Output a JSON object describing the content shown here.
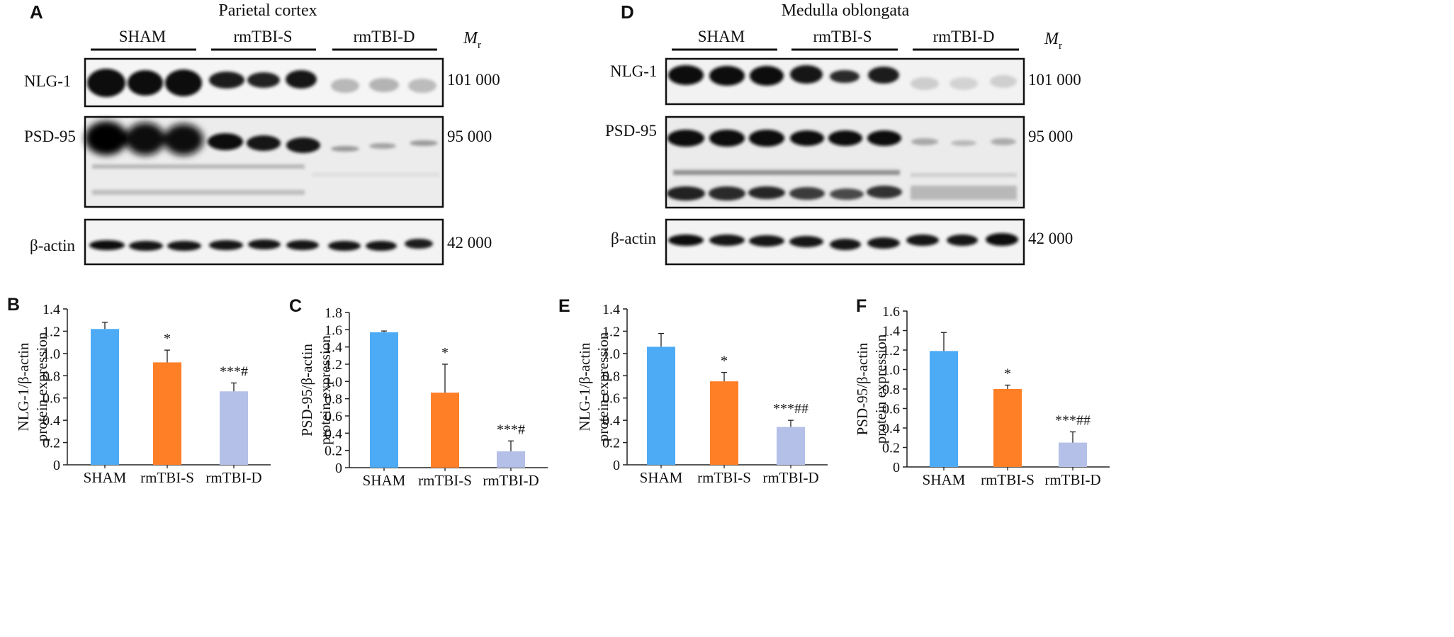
{
  "colors": {
    "sham": "#4dabf5",
    "rmtbi_s": "#ff7f27",
    "rmtbi_d": "#b4c0e8",
    "axis": "#222222",
    "error_bar": "#222222"
  },
  "blots": [
    {
      "panel": "A",
      "title": "Parietal cortex",
      "groups": [
        "SHAM",
        "rmTBI-S",
        "rmTBI-D"
      ],
      "mr_label_main": "M",
      "mr_label_sub": "r",
      "rows": [
        {
          "label": "NLG-1",
          "mw": "101 000"
        },
        {
          "label": "PSD-95",
          "mw": "95 000"
        },
        {
          "label": "β-actin",
          "mw": "42 000"
        }
      ]
    },
    {
      "panel": "D",
      "title": "Medulla oblongata",
      "groups": [
        "SHAM",
        "rmTBI-S",
        "rmTBI-D"
      ],
      "mr_label_main": "M",
      "mr_label_sub": "r",
      "rows": [
        {
          "label": "NLG-1",
          "mw": "101 000"
        },
        {
          "label": "PSD-95",
          "mw": "95 000"
        },
        {
          "label": "β-actin",
          "mw": "42 000"
        }
      ]
    }
  ],
  "chart_data": [
    {
      "panel": "B",
      "type": "bar",
      "categories": [
        "SHAM",
        "rmTBI-S",
        "rmTBI-D"
      ],
      "values": [
        1.22,
        0.92,
        0.66
      ],
      "errors": [
        0.06,
        0.11,
        0.075
      ],
      "annotations": [
        "",
        "*",
        "***#"
      ],
      "ylabel_line1": "NLG-1/β-actin",
      "ylabel_line2": "protein expression",
      "ylim": [
        0,
        1.4
      ],
      "yticks": [
        "0",
        "0.2",
        "0.4",
        "0.6",
        "0.8",
        "1.0",
        "1.2",
        "1.4"
      ]
    },
    {
      "panel": "C",
      "type": "bar",
      "categories": [
        "SHAM",
        "rmTBI-S",
        "rmTBI-D"
      ],
      "values": [
        1.57,
        0.87,
        0.19
      ],
      "errors": [
        0.015,
        0.33,
        0.12
      ],
      "annotations": [
        "",
        "*",
        "***#"
      ],
      "ylabel_line1": "PSD-95/β-actin",
      "ylabel_line2": "protein expression",
      "ylim": [
        0,
        1.8
      ],
      "yticks": [
        "0",
        "0.2",
        "0.4",
        "0.6",
        "0.8",
        "1.0",
        "1.2",
        "1.4",
        "1.6",
        "1.8"
      ]
    },
    {
      "panel": "E",
      "type": "bar",
      "categories": [
        "SHAM",
        "rmTBI-S",
        "rmTBI-D"
      ],
      "values": [
        1.06,
        0.75,
        0.34
      ],
      "errors": [
        0.12,
        0.08,
        0.06
      ],
      "annotations": [
        "",
        "*",
        "***##"
      ],
      "ylabel_line1": "NLG-1/β-actin",
      "ylabel_line2": "protein expression",
      "ylim": [
        0,
        1.4
      ],
      "yticks": [
        "0",
        "0.2",
        "0.4",
        "0.6",
        "0.8",
        "1.0",
        "1.2",
        "1.4"
      ]
    },
    {
      "panel": "F",
      "type": "bar",
      "categories": [
        "SHAM",
        "rmTBI-S",
        "rmTBI-D"
      ],
      "values": [
        1.19,
        0.8,
        0.25
      ],
      "errors": [
        0.19,
        0.04,
        0.11
      ],
      "annotations": [
        "",
        "*",
        "***##"
      ],
      "ylabel_line1": "PSD-95/β-actin",
      "ylabel_line2": "protein expression",
      "ylim": [
        0,
        1.6
      ],
      "yticks": [
        "0",
        "0.2",
        "0.4",
        "0.6",
        "0.8",
        "1.0",
        "1.2",
        "1.4",
        "1.6"
      ]
    }
  ]
}
